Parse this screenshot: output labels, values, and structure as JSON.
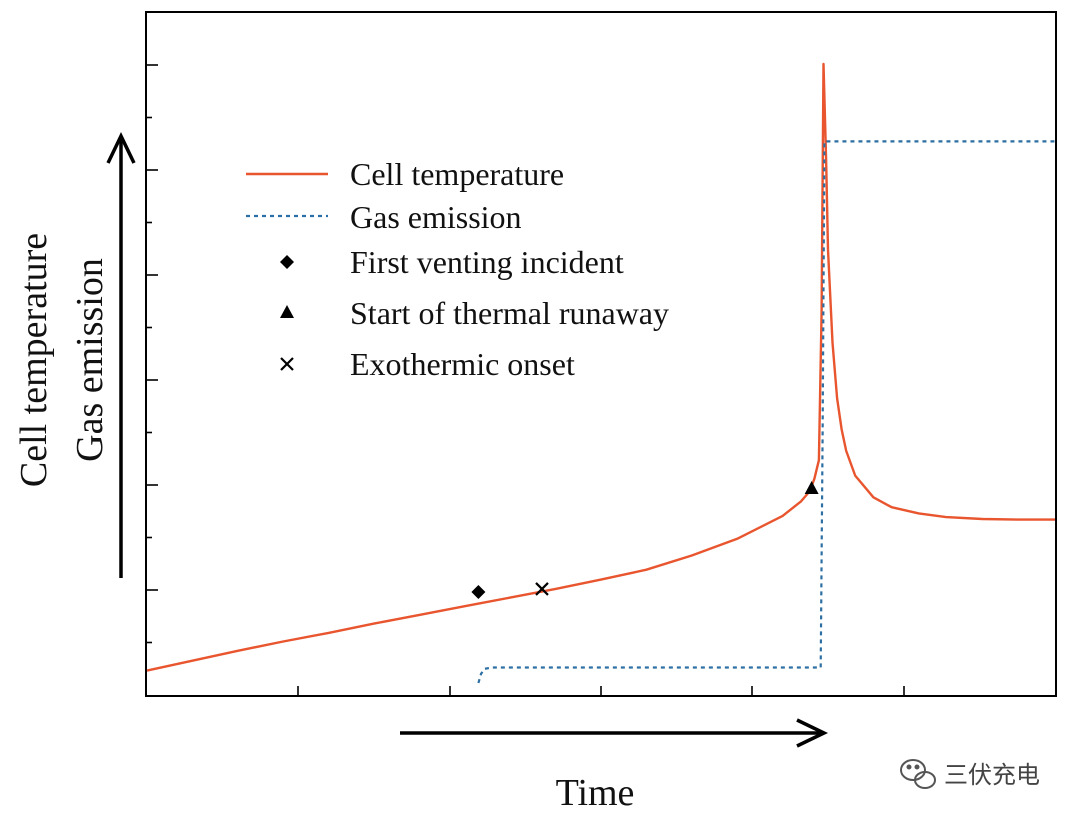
{
  "chart_data": {
    "type": "line",
    "xlabel": "Time",
    "ylabels": [
      "Cell temperature",
      "Gas emission"
    ],
    "xlim": [
      0,
      100
    ],
    "ylim": [
      0,
      100
    ],
    "x_ticks_count": 5,
    "y_ticks_major": 6,
    "grid": false,
    "legend_position": "upper-left",
    "series": [
      {
        "name": "Cell temperature",
        "style": "solid",
        "color": "#e8552e",
        "x": [
          0,
          5,
          10,
          15,
          20,
          25,
          30,
          35,
          40,
          45,
          50,
          55,
          60,
          65,
          70,
          72,
          73,
          73.5,
          74,
          74.3,
          74.5,
          74.8,
          75,
          75.5,
          76,
          76.5,
          77,
          78,
          80,
          82,
          85,
          88,
          92,
          96,
          100
        ],
        "values": [
          2,
          3.6,
          5.2,
          6.7,
          8.1,
          9.6,
          11,
          12.4,
          13.8,
          15.2,
          16.7,
          18.3,
          20.6,
          23.3,
          27,
          29.3,
          31,
          33,
          36,
          60,
          100,
          84,
          70,
          55,
          46,
          41,
          37.5,
          33.5,
          30,
          28.4,
          27.4,
          26.8,
          26.5,
          26.4,
          26.4
        ]
      },
      {
        "name": "Gas emission",
        "style": "dotted",
        "color": "#2e6fa3",
        "x": [
          36.5,
          36.8,
          37.2,
          38,
          40,
          45,
          50,
          55,
          60,
          65,
          70,
          74.2,
          74.4,
          74.6,
          80,
          90,
          100
        ],
        "values": [
          0,
          1.5,
          2.3,
          2.5,
          2.5,
          2.5,
          2.5,
          2.5,
          2.5,
          2.5,
          2.5,
          2.5,
          40,
          87.5,
          87.5,
          87.5,
          87.5
        ]
      }
    ],
    "markers": [
      {
        "name": "First venting incident",
        "symbol": "diamond",
        "x": 36.5,
        "y": 14.7
      },
      {
        "name": "Start of thermal runaway",
        "symbol": "triangle",
        "x": 73.2,
        "y": 31.5
      },
      {
        "name": "Exothermic onset",
        "symbol": "cross",
        "x": 43.5,
        "y": 15.2
      }
    ]
  },
  "watermark": {
    "text": "三伏充电",
    "icon": "wechat-icon"
  }
}
